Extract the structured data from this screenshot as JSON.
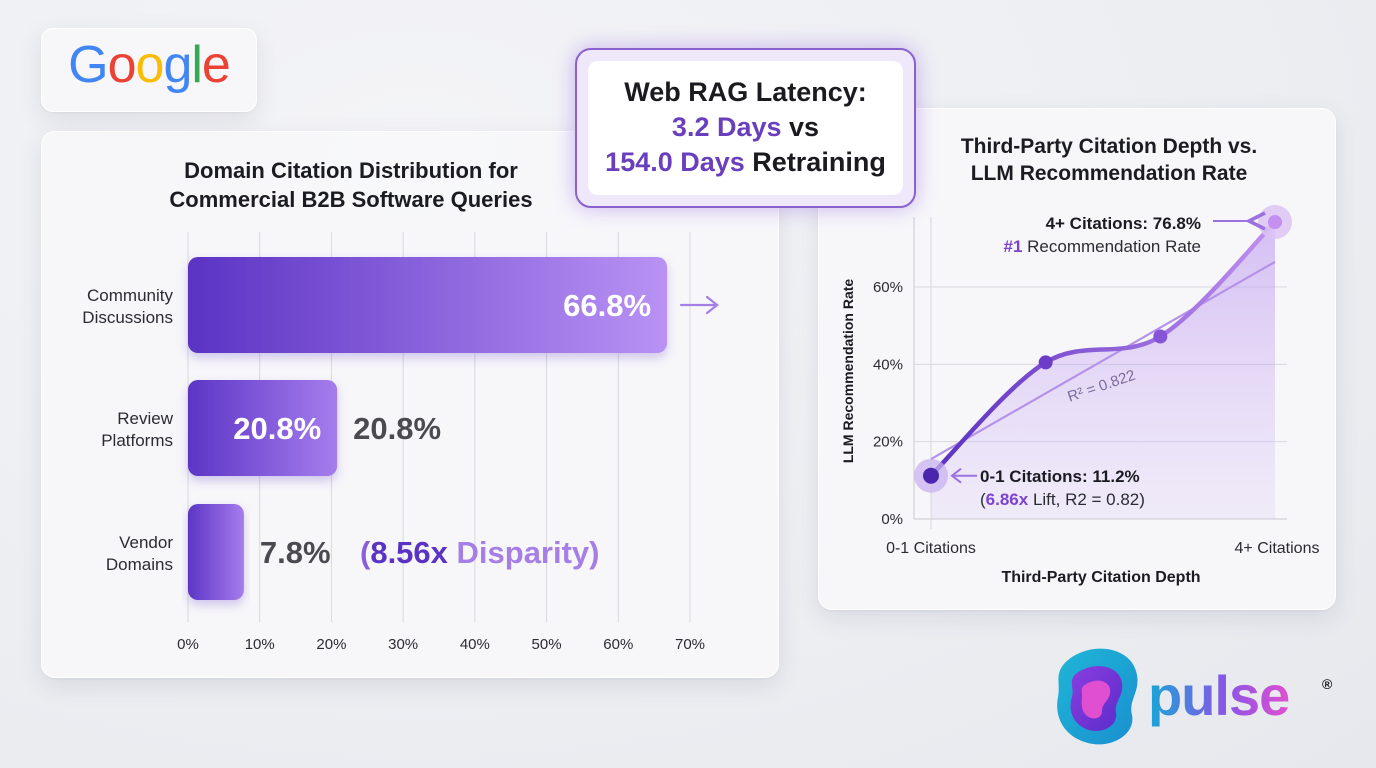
{
  "brand": {
    "google_letters": [
      {
        "ch": "G",
        "color": "#4285F4"
      },
      {
        "ch": "o",
        "color": "#EA4335"
      },
      {
        "ch": "o",
        "color": "#FBBC05"
      },
      {
        "ch": "g",
        "color": "#4285F4"
      },
      {
        "ch": "l",
        "color": "#34A853"
      },
      {
        "ch": "e",
        "color": "#EA4335"
      }
    ],
    "pulse_wordmark": "pulse",
    "pulse_mark": "®"
  },
  "latency": {
    "line1": "Web RAG Latency:",
    "line2_value": "3.2 Days",
    "line2_suffix": " vs",
    "line3_value": "154.0 Days",
    "line3_suffix": " Retraining"
  },
  "colors": {
    "purple_dark": "#5b33c4",
    "purple_light": "#b58cf2",
    "text_dark": "#1b1b22",
    "text_gray": "#4a4a50"
  },
  "chart_data": [
    {
      "type": "bar",
      "orientation": "horizontal",
      "title_lines": [
        "Domain Citation Distribution for",
        "Commercial B2B Software Queries"
      ],
      "categories": [
        [
          "Community",
          "Discussions"
        ],
        [
          "Review",
          "Platforms"
        ],
        [
          "Vendor",
          "Domains"
        ]
      ],
      "values": [
        66.8,
        20.8,
        7.8
      ],
      "bar_labels_inside": [
        "66.8%",
        "20.8%",
        ""
      ],
      "bar_labels_outside": [
        "",
        "20.8%",
        "7.8%"
      ],
      "annotation": {
        "open": "(",
        "value": "8.56x",
        "text": " Disparity)"
      },
      "xlim": [
        0,
        70
      ],
      "xticks": [
        0,
        10,
        20,
        30,
        40,
        50,
        60,
        70
      ],
      "xtick_labels": [
        "0%",
        "10%",
        "20%",
        "30%",
        "40%",
        "50%",
        "60%",
        "70%"
      ],
      "grid": true
    },
    {
      "type": "line",
      "title_lines": [
        "Third-Party Citation Depth vs.",
        "LLM Recommendation Rate"
      ],
      "xlabel": "Third-Party Citation Depth",
      "ylabel": "LLM Recommendation Rate",
      "x": [
        0,
        1,
        2,
        3
      ],
      "xtick_labels": [
        "0-1 Citations",
        "4+ Citations"
      ],
      "ylim": [
        0,
        70
      ],
      "yticks": [
        0,
        20,
        40,
        60
      ],
      "ytick_labels": [
        "0%",
        "20%",
        "40%",
        "60%"
      ],
      "series": [
        {
          "values": [
            11.2,
            40.5,
            47.2,
            76.8
          ]
        }
      ],
      "trend": {
        "start": 15.5,
        "end": 66.5,
        "label": "R² = 0.822"
      },
      "callout_high": {
        "line1": "4+ Citations: 76.8%",
        "rank": "#1",
        "line2_rest": " Recommendation Rate"
      },
      "callout_low": {
        "line1": "0-1 Citations: 11.2%",
        "open": "(",
        "lift": "6.86x",
        "rest": " Lift, R2 = 0.82)"
      },
      "grid": true
    }
  ]
}
